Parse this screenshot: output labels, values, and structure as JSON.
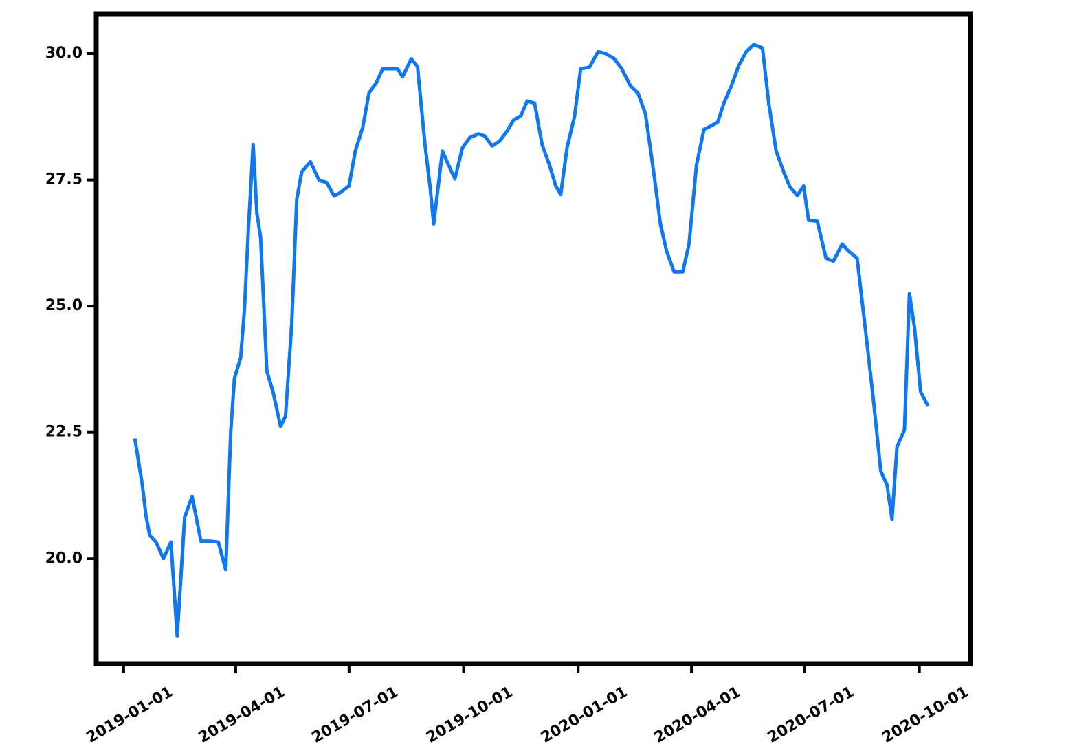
{
  "chart_data": {
    "type": "line",
    "x": [
      9,
      15,
      18,
      21,
      26,
      32,
      38,
      43,
      49,
      55,
      62,
      69,
      76,
      82,
      86,
      89,
      94,
      97,
      100,
      104,
      107,
      110,
      115,
      120,
      126,
      130,
      135,
      139,
      143,
      150,
      157,
      163,
      169,
      174,
      181,
      186,
      192,
      197,
      203,
      208,
      214,
      220,
      224,
      231,
      236,
      242,
      246,
      249,
      256,
      261,
      266,
      272,
      278,
      285,
      290,
      296,
      302,
      308,
      313,
      319,
      324,
      330,
      336,
      342,
      347,
      351,
      356,
      362,
      367,
      374,
      381,
      387,
      394,
      400,
      407,
      413,
      419,
      426,
      431,
      436,
      442,
      449,
      454,
      460,
      466,
      471,
      477,
      482,
      488,
      494,
      500,
      506,
      513,
      518,
      524,
      530,
      535,
      541,
      546,
      550,
      557,
      564,
      570,
      577,
      582,
      589,
      597,
      602,
      608,
      613,
      617,
      621,
      627,
      631,
      635,
      640,
      646
    ],
    "series": [
      {
        "color": "#0f78f0",
        "values": [
          22.38,
          21.46,
          20.84,
          20.46,
          20.33,
          20.0,
          20.33,
          18.46,
          20.82,
          21.23,
          20.35,
          20.35,
          20.33,
          19.78,
          22.51,
          23.57,
          23.98,
          24.93,
          26.43,
          28.2,
          26.84,
          26.36,
          23.71,
          23.3,
          22.62,
          22.82,
          24.66,
          27.11,
          27.66,
          27.86,
          27.49,
          27.45,
          27.18,
          27.25,
          27.38,
          28.07,
          28.54,
          29.22,
          29.43,
          29.7,
          29.7,
          29.7,
          29.54,
          29.9,
          29.74,
          28.2,
          27.38,
          26.63,
          28.07,
          27.79,
          27.52,
          28.13,
          28.34,
          28.41,
          28.37,
          28.17,
          28.27,
          28.47,
          28.68,
          28.77,
          29.06,
          29.02,
          28.2,
          27.79,
          27.38,
          27.21,
          28.13,
          28.75,
          29.7,
          29.73,
          30.04,
          30.0,
          29.9,
          29.7,
          29.36,
          29.22,
          28.81,
          27.59,
          26.63,
          26.09,
          25.68,
          25.68,
          26.23,
          27.79,
          28.5,
          28.56,
          28.64,
          29.02,
          29.36,
          29.77,
          30.04,
          30.18,
          30.11,
          29.02,
          28.07,
          27.66,
          27.36,
          27.19,
          27.38,
          26.7,
          26.68,
          25.95,
          25.89,
          26.23,
          26.09,
          25.95,
          24.25,
          23.16,
          21.73,
          21.46,
          20.78,
          22.21,
          22.55,
          25.25,
          24.59,
          23.3,
          23.02
        ]
      }
    ],
    "xlim": [
      -22,
      680
    ],
    "xticks": [
      {
        "value": 0,
        "label": "2019-01-01"
      },
      {
        "value": 90,
        "label": "2019-04-01"
      },
      {
        "value": 181,
        "label": "2019-07-01"
      },
      {
        "value": 273,
        "label": "2019-10-01"
      },
      {
        "value": 365,
        "label": "2020-01-01"
      },
      {
        "value": 456,
        "label": "2020-04-01"
      },
      {
        "value": 547,
        "label": "2020-07-01"
      },
      {
        "value": 639,
        "label": "2020-10-01"
      }
    ],
    "ylim": [
      17.92,
      30.79
    ],
    "yticks": [
      {
        "value": 20,
        "label": "20.0"
      },
      {
        "value": 22.5,
        "label": "22.5"
      },
      {
        "value": 25,
        "label": "25.0"
      },
      {
        "value": 27.5,
        "label": "27.5"
      },
      {
        "value": 30,
        "label": "30.0"
      }
    ]
  }
}
